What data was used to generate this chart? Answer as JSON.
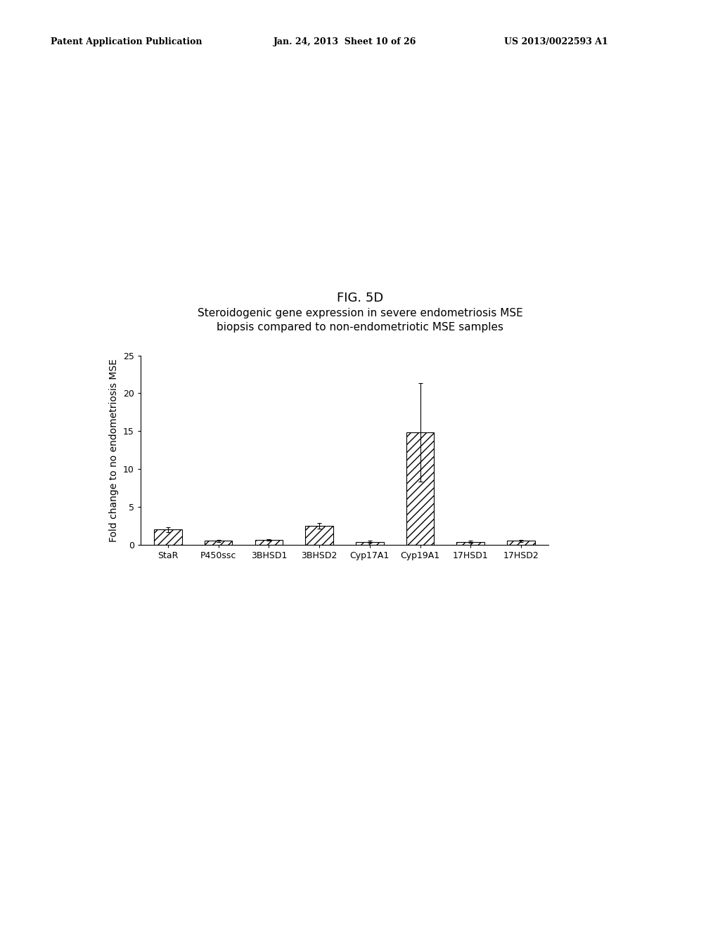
{
  "fig_label": "FIG. 5D",
  "title_line1": "Steroidogenic gene expression in severe endometriosis MSE",
  "title_line2": "biopsis compared to non-endometriotic MSE samples",
  "ylabel": "Fold change to no endometriosis MSE",
  "categories": [
    "StaR",
    "P450ssc",
    "3BHSD1",
    "3BHSD2",
    "Cyp17A1",
    "Cyp19A1",
    "17HSD1",
    "17HSD2"
  ],
  "values": [
    2.0,
    0.5,
    0.6,
    2.5,
    0.4,
    14.8,
    0.4,
    0.5
  ],
  "errors": [
    0.3,
    0.15,
    0.1,
    0.4,
    0.1,
    6.5,
    0.15,
    0.1
  ],
  "ylim": [
    0,
    25
  ],
  "yticks": [
    0,
    5,
    10,
    15,
    20,
    25
  ],
  "hatch": "///",
  "background_color": "#ffffff",
  "header_left": "Patent Application Publication",
  "header_center": "Jan. 24, 2013  Sheet 10 of 26",
  "header_right": "US 2013/0022593 A1",
  "fig_label_fontsize": 13,
  "title_fontsize": 11,
  "axis_fontsize": 10,
  "tick_fontsize": 9,
  "header_fontsize": 9
}
